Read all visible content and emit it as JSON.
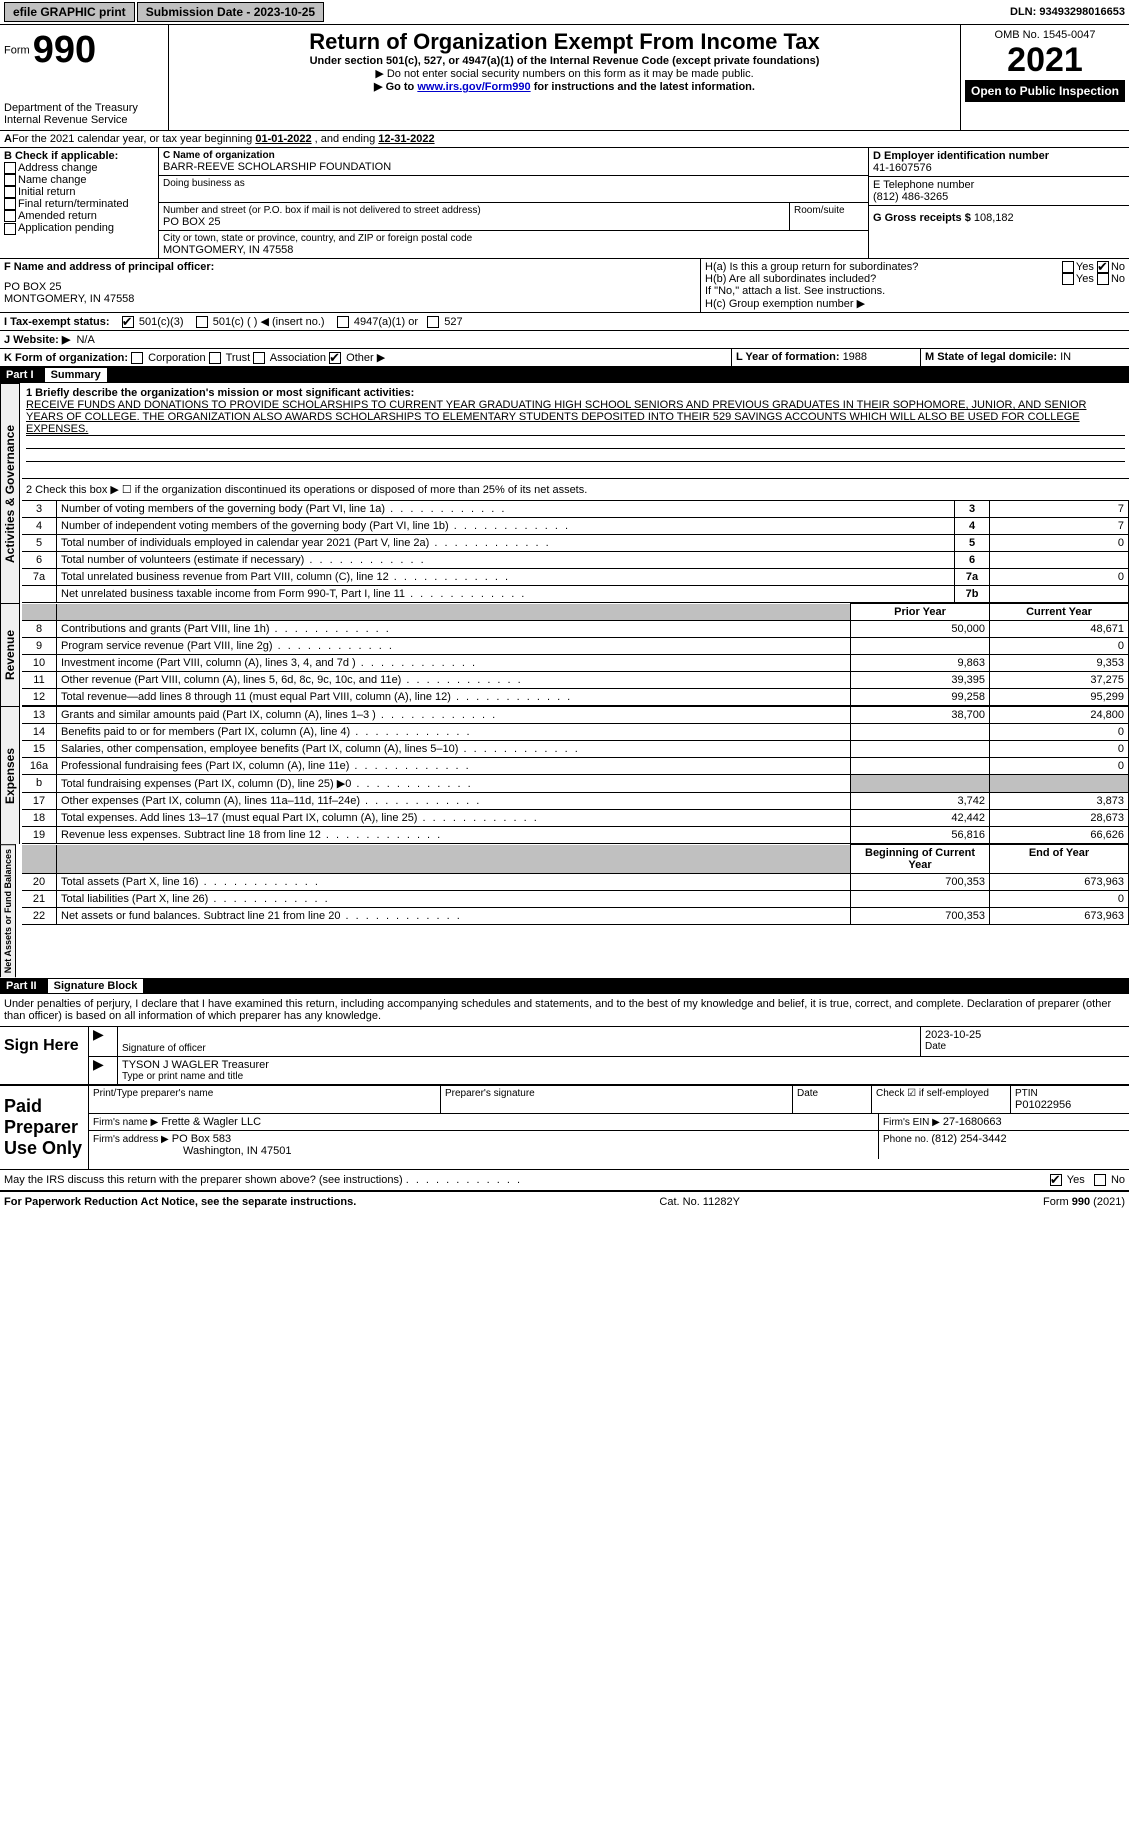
{
  "topbar": {
    "efile": "efile GRAPHIC print",
    "submission_label": "Submission Date - 2023-10-25",
    "dln": "DLN: 93493298016653"
  },
  "header": {
    "form_prefix": "Form",
    "form_number": "990",
    "dept": "Department of the Treasury",
    "irs": "Internal Revenue Service",
    "title": "Return of Organization Exempt From Income Tax",
    "subtitle": "Under section 501(c), 527, or 4947(a)(1) of the Internal Revenue Code (except private foundations)",
    "note1": "▶ Do not enter social security numbers on this form as it may be made public.",
    "note2_pre": "▶ Go to ",
    "note2_link": "www.irs.gov/Form990",
    "note2_post": " for instructions and the latest information.",
    "omb": "OMB No. 1545-0047",
    "year": "2021",
    "open": "Open to Public Inspection"
  },
  "period": {
    "text_a": "For the 2021 calendar year, or tax year beginning ",
    "begin": "01-01-2022",
    "text_b": " , and ending ",
    "end": "12-31-2022"
  },
  "boxB": {
    "header": "B Check if applicable:",
    "items": [
      "Address change",
      "Name change",
      "Initial return",
      "Final return/terminated",
      "Amended return",
      "Application pending"
    ]
  },
  "boxC": {
    "label": "C Name of organization",
    "name": "BARR-REEVE SCHOLARSHIP FOUNDATION",
    "dba_label": "Doing business as",
    "street_label": "Number and street (or P.O. box if mail is not delivered to street address)",
    "room_label": "Room/suite",
    "street": "PO BOX 25",
    "city_label": "City or town, state or province, country, and ZIP or foreign postal code",
    "city": "MONTGOMERY, IN  47558"
  },
  "boxD": {
    "label": "D Employer identification number",
    "value": "41-1607576"
  },
  "boxE": {
    "label": "E Telephone number",
    "value": "(812) 486-3265"
  },
  "boxG": {
    "label": "G Gross receipts $",
    "value": "108,182"
  },
  "boxF": {
    "label": "F Name and address of principal officer:",
    "line1": "PO BOX 25",
    "line2": "MONTGOMERY, IN  47558"
  },
  "boxH": {
    "a_label": "H(a)  Is this a group return for subordinates?",
    "b_label": "H(b)  Are all subordinates included?",
    "b_note": "If \"No,\" attach a list. See instructions.",
    "c_label": "H(c)  Group exemption number ▶",
    "yes": "Yes",
    "no": "No"
  },
  "boxI": {
    "label": "I Tax-exempt status:",
    "o501c3": "501(c)(3)",
    "o501c": "501(c) (  ) ◀ (insert no.)",
    "o4947": "4947(a)(1) or",
    "o527": "527"
  },
  "boxJ": {
    "label": "J Website: ▶",
    "value": "N/A"
  },
  "boxK": {
    "label": "K Form of organization:",
    "corp": "Corporation",
    "trust": "Trust",
    "assoc": "Association",
    "other": "Other ▶"
  },
  "boxL": {
    "label": "L Year of formation: ",
    "value": "1988"
  },
  "boxM": {
    "label": "M State of legal domicile: ",
    "value": "IN"
  },
  "part1": {
    "header": "Part I",
    "title": "Summary",
    "q1_label": "1  Briefly describe the organization's mission or most significant activities:",
    "mission": "RECEIVE FUNDS AND DONATIONS TO PROVIDE SCHOLARSHIPS TO CURRENT YEAR GRADUATING HIGH SCHOOL SENIORS AND PREVIOUS GRADUATES IN THEIR SOPHOMORE, JUNIOR, AND SENIOR YEARS OF COLLEGE. THE ORGANIZATION ALSO AWARDS SCHOLARSHIPS TO ELEMENTARY STUDENTS DEPOSITED INTO THEIR 529 SAVINGS ACCOUNTS WHICH WILL ALSO BE USED FOR COLLEGE EXPENSES.",
    "q2": "2   Check this box ▶ ☐ if the organization discontinued its operations or disposed of more than 25% of its net assets.",
    "gov_label": "Activities & Governance",
    "rev_label": "Revenue",
    "exp_label": "Expenses",
    "net_label": "Net Assets or Fund Balances",
    "rows_gov": [
      {
        "n": "3",
        "d": "Number of voting members of the governing body (Part VI, line 1a)",
        "k": "3",
        "v": "7"
      },
      {
        "n": "4",
        "d": "Number of independent voting members of the governing body (Part VI, line 1b)",
        "k": "4",
        "v": "7"
      },
      {
        "n": "5",
        "d": "Total number of individuals employed in calendar year 2021 (Part V, line 2a)",
        "k": "5",
        "v": "0"
      },
      {
        "n": "6",
        "d": "Total number of volunteers (estimate if necessary)",
        "k": "6",
        "v": ""
      },
      {
        "n": "7a",
        "d": "Total unrelated business revenue from Part VIII, column (C), line 12",
        "k": "7a",
        "v": "0"
      },
      {
        "n": "",
        "d": "Net unrelated business taxable income from Form 990-T, Part I, line 11",
        "k": "7b",
        "v": ""
      }
    ],
    "col_prior": "Prior Year",
    "col_current": "Current Year",
    "rows_rev": [
      {
        "n": "8",
        "d": "Contributions and grants (Part VIII, line 1h)",
        "p": "50,000",
        "c": "48,671"
      },
      {
        "n": "9",
        "d": "Program service revenue (Part VIII, line 2g)",
        "p": "",
        "c": "0"
      },
      {
        "n": "10",
        "d": "Investment income (Part VIII, column (A), lines 3, 4, and 7d )",
        "p": "9,863",
        "c": "9,353"
      },
      {
        "n": "11",
        "d": "Other revenue (Part VIII, column (A), lines 5, 6d, 8c, 9c, 10c, and 11e)",
        "p": "39,395",
        "c": "37,275"
      },
      {
        "n": "12",
        "d": "Total revenue—add lines 8 through 11 (must equal Part VIII, column (A), line 12)",
        "p": "99,258",
        "c": "95,299"
      }
    ],
    "rows_exp": [
      {
        "n": "13",
        "d": "Grants and similar amounts paid (Part IX, column (A), lines 1–3 )",
        "p": "38,700",
        "c": "24,800"
      },
      {
        "n": "14",
        "d": "Benefits paid to or for members (Part IX, column (A), line 4)",
        "p": "",
        "c": "0"
      },
      {
        "n": "15",
        "d": "Salaries, other compensation, employee benefits (Part IX, column (A), lines 5–10)",
        "p": "",
        "c": "0"
      },
      {
        "n": "16a",
        "d": "Professional fundraising fees (Part IX, column (A), line 11e)",
        "p": "",
        "c": "0"
      },
      {
        "n": "b",
        "d": "Total fundraising expenses (Part IX, column (D), line 25) ▶0",
        "p": "SHADE",
        "c": "SHADE"
      },
      {
        "n": "17",
        "d": "Other expenses (Part IX, column (A), lines 11a–11d, 11f–24e)",
        "p": "3,742",
        "c": "3,873"
      },
      {
        "n": "18",
        "d": "Total expenses. Add lines 13–17 (must equal Part IX, column (A), line 25)",
        "p": "42,442",
        "c": "28,673"
      },
      {
        "n": "19",
        "d": "Revenue less expenses. Subtract line 18 from line 12",
        "p": "56,816",
        "c": "66,626"
      }
    ],
    "col_begin": "Beginning of Current Year",
    "col_end": "End of Year",
    "rows_net": [
      {
        "n": "20",
        "d": "Total assets (Part X, line 16)",
        "p": "700,353",
        "c": "673,963"
      },
      {
        "n": "21",
        "d": "Total liabilities (Part X, line 26)",
        "p": "",
        "c": "0"
      },
      {
        "n": "22",
        "d": "Net assets or fund balances. Subtract line 21 from line 20",
        "p": "700,353",
        "c": "673,963"
      }
    ]
  },
  "part2": {
    "header": "Part II",
    "title": "Signature Block",
    "declaration": "Under penalties of perjury, I declare that I have examined this return, including accompanying schedules and statements, and to the best of my knowledge and belief, it is true, correct, and complete. Declaration of preparer (other than officer) is based on all information of which preparer has any knowledge.",
    "sign_here": "Sign Here",
    "sig_officer": "Signature of officer",
    "date": "Date",
    "sig_date": "2023-10-25",
    "officer_name": "TYSON J WAGLER Treasurer",
    "type_name": "Type or print name and title",
    "paid": "Paid Preparer Use Only",
    "prep_name_label": "Print/Type preparer's name",
    "prep_sig_label": "Preparer's signature",
    "date_label": "Date",
    "check_if": "Check ☑ if self-employed",
    "ptin_label": "PTIN",
    "ptin": "P01022956",
    "firm_name_label": "Firm's name    ▶",
    "firm_name": "Frette & Wagler LLC",
    "firm_ein_label": "Firm's EIN ▶",
    "firm_ein": "27-1680663",
    "firm_addr_label": "Firm's address ▶",
    "firm_addr1": "PO Box 583",
    "firm_addr2": "Washington, IN  47501",
    "phone_label": "Phone no. ",
    "phone": "(812) 254-3442",
    "may_irs": "May the IRS discuss this return with the preparer shown above? (see instructions)",
    "yes": "Yes",
    "no": "No"
  },
  "footer": {
    "left": "For Paperwork Reduction Act Notice, see the separate instructions.",
    "mid": "Cat. No. 11282Y",
    "right": "Form 990 (2021)"
  }
}
